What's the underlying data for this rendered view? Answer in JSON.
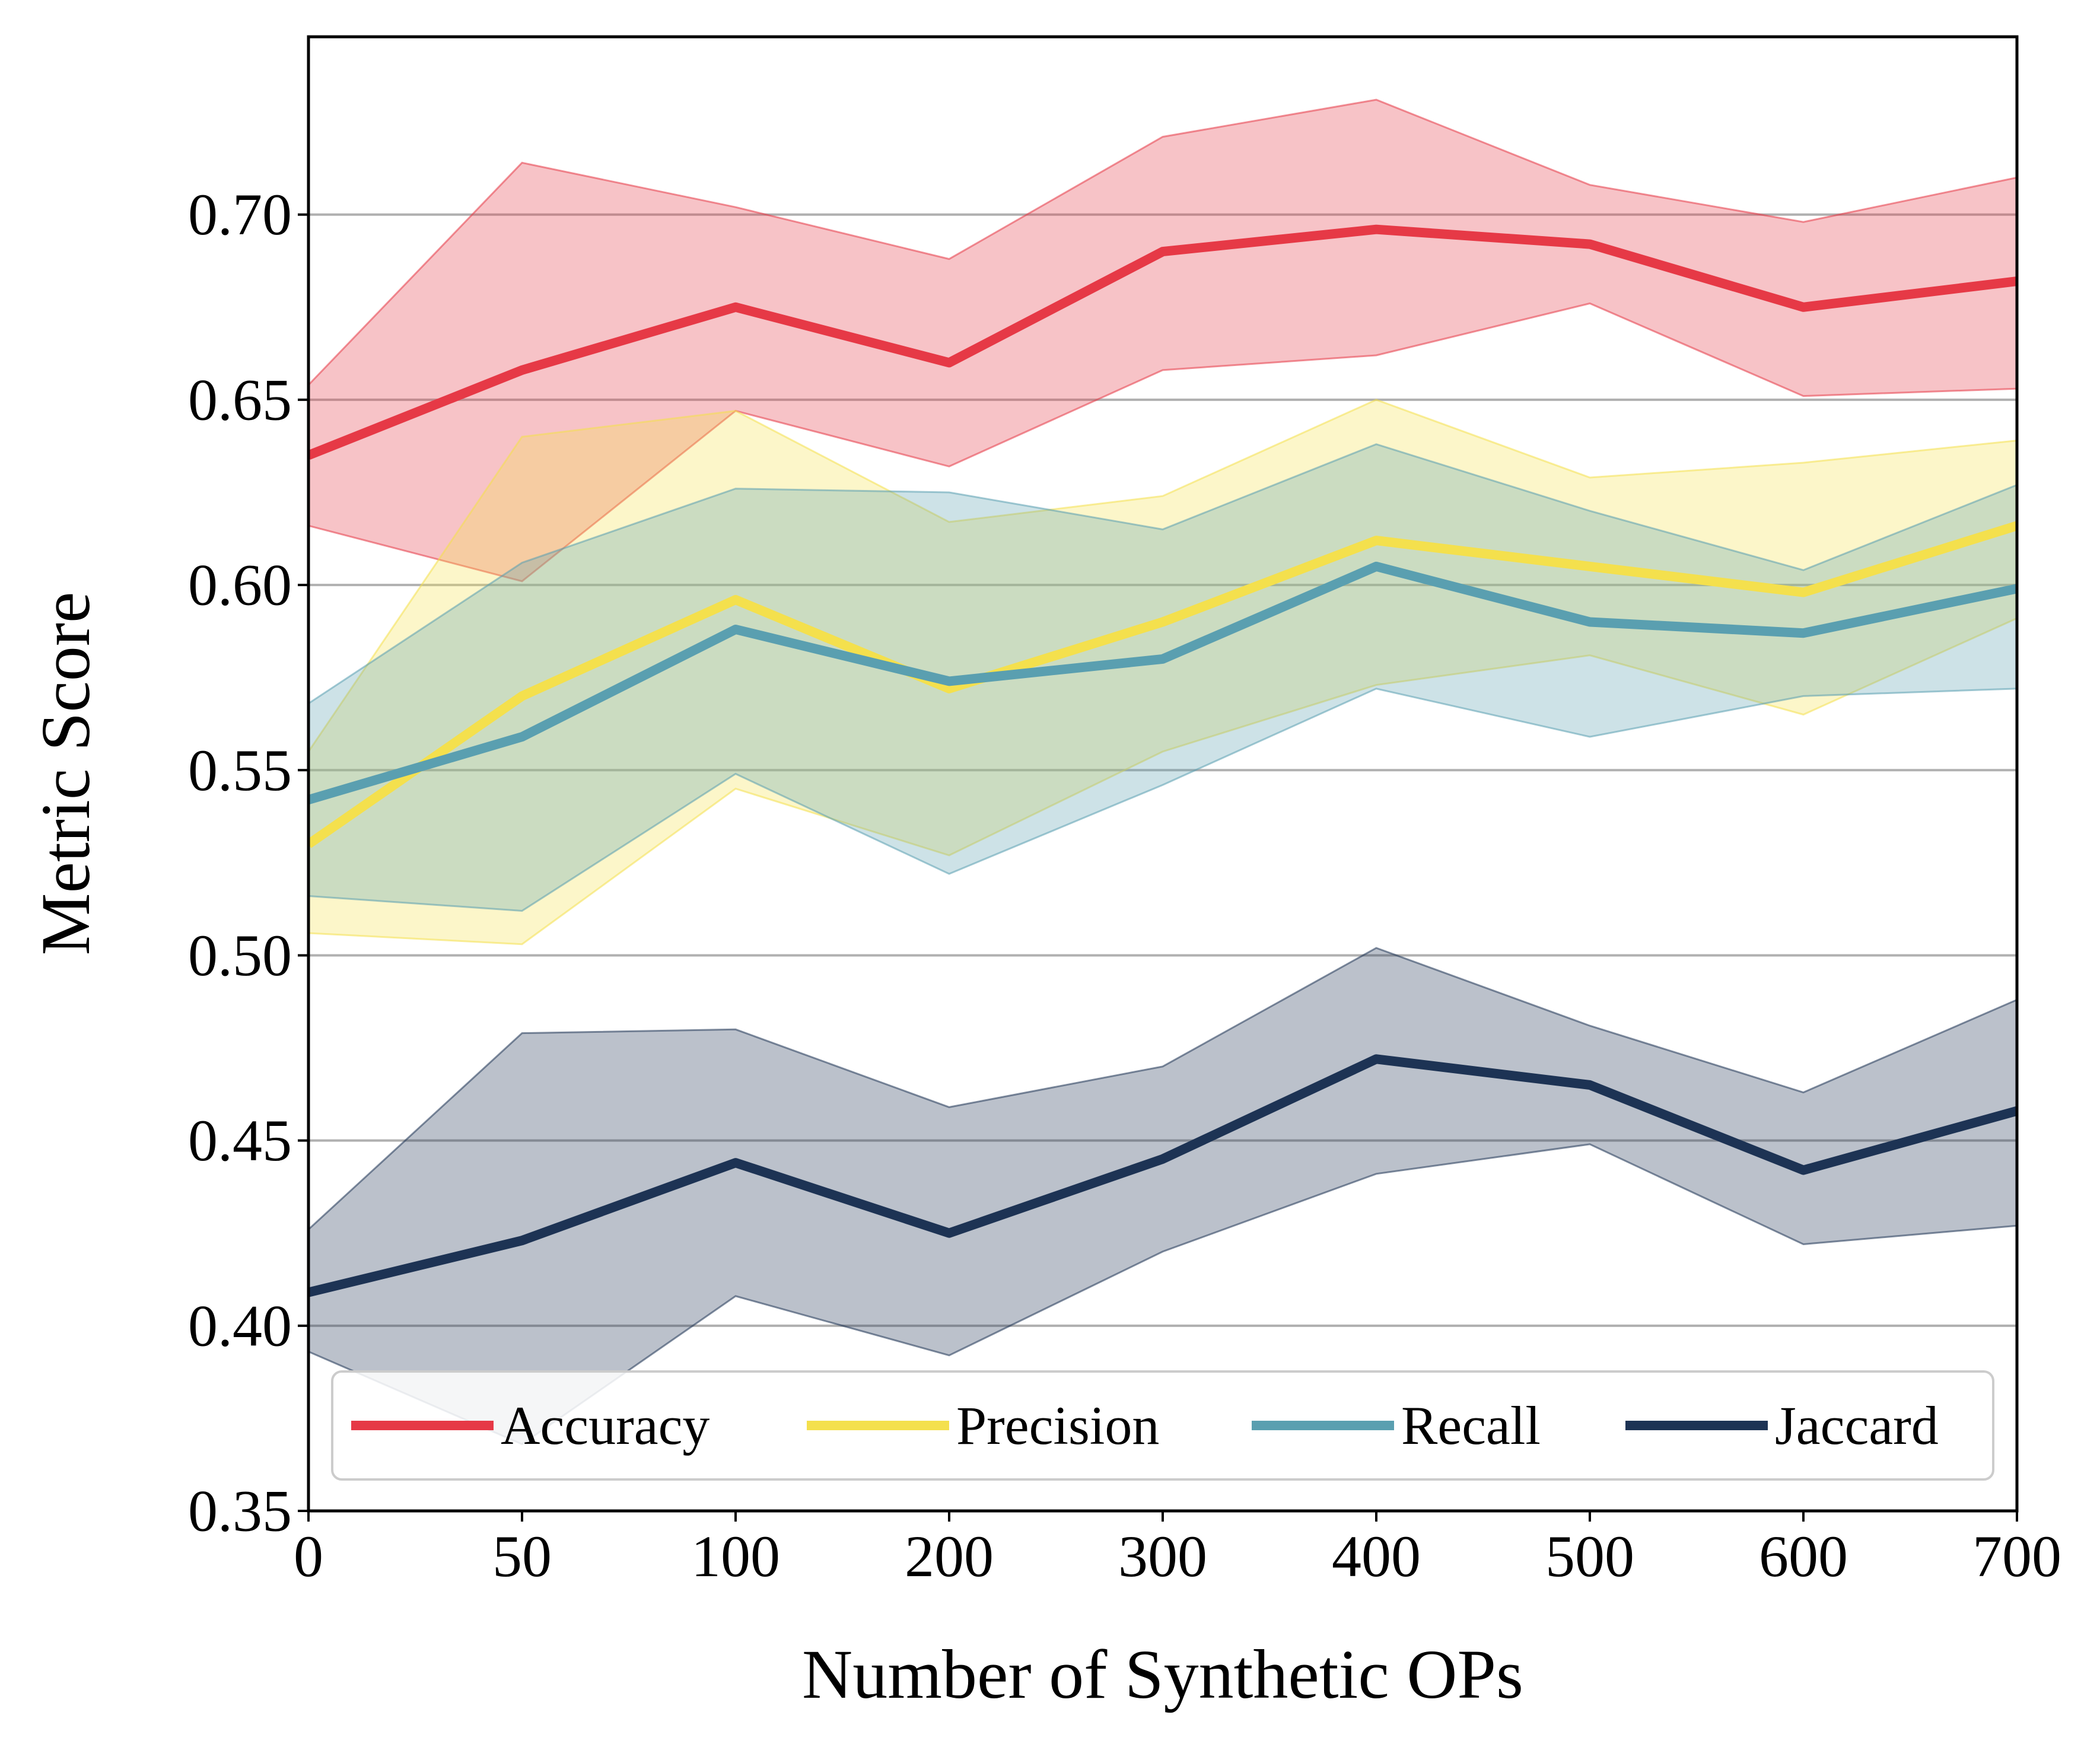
{
  "chart_data": {
    "type": "line",
    "title": "",
    "xlabel": "Number of Synthetic OPs",
    "ylabel": "Metric Score",
    "categories": [
      "0",
      "50",
      "100",
      "200",
      "300",
      "400",
      "500",
      "600",
      "700"
    ],
    "yticks": [
      "0.35",
      "0.40",
      "0.45",
      "0.50",
      "0.55",
      "0.60",
      "0.65",
      "0.70"
    ],
    "ylim": [
      0.35,
      0.748
    ],
    "grid": "horizontal",
    "legend_position": "bottom",
    "series": [
      {
        "name": "Accuracy",
        "color": "#e63946",
        "values": [
          0.635,
          0.658,
          0.675,
          0.66,
          0.69,
          0.696,
          0.692,
          0.675,
          0.682
        ],
        "upper": [
          0.654,
          0.714,
          0.702,
          0.688,
          0.721,
          0.731,
          0.708,
          0.698,
          0.71
        ],
        "lower": [
          0.616,
          0.601,
          0.647,
          0.632,
          0.658,
          0.662,
          0.676,
          0.651,
          0.653
        ]
      },
      {
        "name": "Precision",
        "color": "#f4e04d",
        "values": [
          0.53,
          0.57,
          0.596,
          0.572,
          0.59,
          0.612,
          0.605,
          0.598,
          0.616
        ],
        "upper": [
          0.555,
          0.64,
          0.647,
          0.617,
          0.624,
          0.65,
          0.629,
          0.633,
          0.639
        ],
        "lower": [
          0.506,
          0.503,
          0.545,
          0.527,
          0.555,
          0.573,
          0.581,
          0.565,
          0.591
        ]
      },
      {
        "name": "Recall",
        "color": "#5a9fb0",
        "values": [
          0.542,
          0.559,
          0.588,
          0.574,
          0.58,
          0.605,
          0.59,
          0.587,
          0.599
        ],
        "upper": [
          0.568,
          0.606,
          0.626,
          0.625,
          0.615,
          0.638,
          0.62,
          0.604,
          0.627
        ],
        "lower": [
          0.516,
          0.512,
          0.549,
          0.522,
          0.546,
          0.572,
          0.559,
          0.57,
          0.572
        ]
      },
      {
        "name": "Jaccard",
        "color": "#1d3354",
        "values": [
          0.409,
          0.423,
          0.444,
          0.425,
          0.445,
          0.472,
          0.465,
          0.442,
          0.458
        ],
        "upper": [
          0.426,
          0.479,
          0.48,
          0.459,
          0.47,
          0.502,
          0.481,
          0.463,
          0.488
        ],
        "lower": [
          0.393,
          0.368,
          0.408,
          0.392,
          0.42,
          0.441,
          0.449,
          0.422,
          0.427
        ]
      }
    ]
  }
}
